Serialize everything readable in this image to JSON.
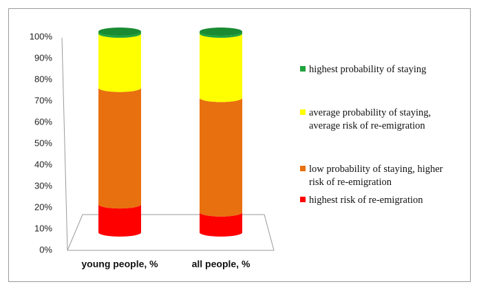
{
  "chart_data": {
    "type": "bar3d-stacked",
    "categories": [
      "young people, %",
      "all people, %"
    ],
    "series": [
      {
        "name": "highest risk of re-emigration",
        "color": "#ff0000",
        "values": [
          14,
          10
        ]
      },
      {
        "name": "low probability of staying, higher risk of re-emigration",
        "color": "#e8700f",
        "values": [
          58,
          57
        ]
      },
      {
        "name": "average probability of staying, average risk of re-emigration",
        "color": "#ffff00",
        "values": [
          27,
          32
        ]
      },
      {
        "name": "highest probability of staying",
        "color": "#1fa33c",
        "values": [
          1,
          1
        ]
      }
    ],
    "ylim": [
      0,
      100
    ],
    "yticks": [
      {
        "value": 0,
        "label": "0%"
      },
      {
        "value": 10,
        "label": "10%"
      },
      {
        "value": 20,
        "label": "20%"
      },
      {
        "value": 30,
        "label": "30%"
      },
      {
        "value": 40,
        "label": "40%"
      },
      {
        "value": 50,
        "label": "50%"
      },
      {
        "value": 60,
        "label": "60%"
      },
      {
        "value": 70,
        "label": "70%"
      },
      {
        "value": 80,
        "label": "80%"
      },
      {
        "value": 90,
        "label": "90%"
      },
      {
        "value": 100,
        "label": "100%"
      }
    ]
  }
}
